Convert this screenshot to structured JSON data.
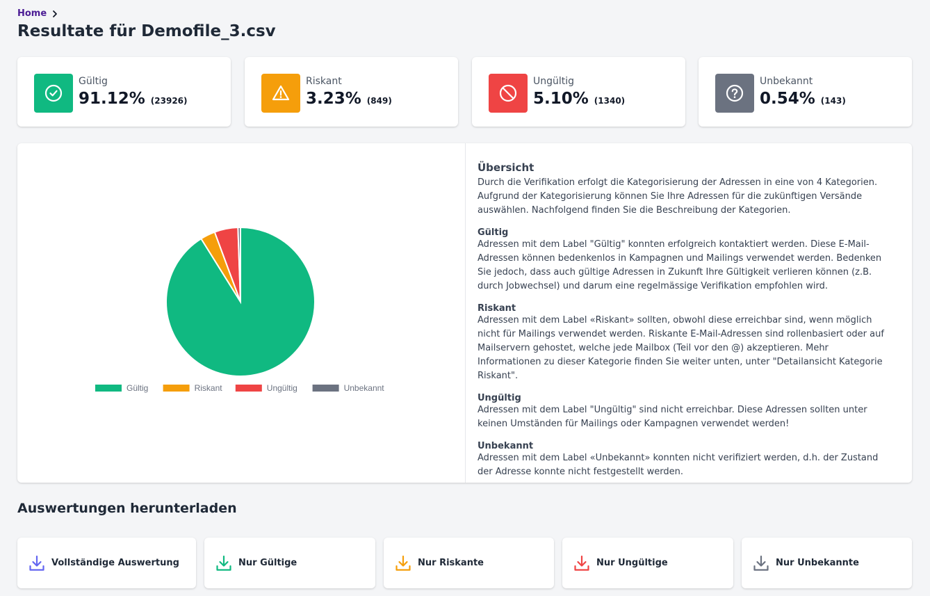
{
  "breadcrumb": {
    "home": "Home"
  },
  "page": {
    "title": "Resultate für Demofile_3.csv"
  },
  "stats": [
    {
      "label": "Gültig",
      "percent": "91.12%",
      "count": "(23926)",
      "color": "#10b981",
      "icon": "check-circle-icon"
    },
    {
      "label": "Riskant",
      "percent": "3.23%",
      "count": "(849)",
      "color": "#f59e0b",
      "icon": "warning-triangle-icon"
    },
    {
      "label": "Ungültig",
      "percent": "5.10%",
      "count": "(1340)",
      "color": "#ef4444",
      "icon": "ban-icon"
    },
    {
      "label": "Unbekannt",
      "percent": "0.54%",
      "count": "(143)",
      "color": "#6b7280",
      "icon": "question-circle-icon"
    }
  ],
  "chart_data": {
    "type": "pie",
    "categories": [
      "Gültig",
      "Riskant",
      "Ungültig",
      "Unbekannt"
    ],
    "values": [
      23926,
      849,
      1340,
      143
    ],
    "colors": [
      "#10b981",
      "#f59e0b",
      "#ef4444",
      "#6b7280"
    ],
    "legend": "bottom"
  },
  "overview": {
    "title": "Übersicht",
    "intro": "Durch die Verifikation erfolgt die Kategorisierung der Adressen in eine von 4 Kategorien. Aufgrund der Kategorisierung können Sie Ihre Adressen für die zukünftigen Versände auswählen. Nachfolgend finden Sie die Beschreibung der Kategorien.",
    "sections": [
      {
        "heading": "Gültig",
        "text": "Adressen mit dem Label \"Gültig\" konnten erfolgreich kontaktiert werden. Diese E-Mail-Adressen können bedenkenlos in Kampagnen und Mailings verwendet werden. Bedenken Sie jedoch, dass auch gültige Adressen in Zukunft Ihre Gültigkeit verlieren können (z.B. durch Jobwechsel) und darum eine regelmässige Verifikation empfohlen wird."
      },
      {
        "heading": "Riskant",
        "text": "Adressen mit dem Label «Riskant» sollten, obwohl diese erreichbar sind, wenn möglich nicht für Mailings verwendet werden. Riskante E-Mail-Adressen sind rollenbasiert oder auf Mailservern gehostet, welche jede Mailbox (Teil vor den @) akzeptieren. Mehr Informationen zu dieser Kategorie finden Sie weiter unten, unter \"Detailansicht Kategorie Riskant\"."
      },
      {
        "heading": "Ungültig",
        "text": "Adressen mit dem Label \"Ungültig\" sind nicht erreichbar. Diese Adressen sollten unter keinen Umständen für Mailings oder Kampagnen verwendet werden!"
      },
      {
        "heading": "Unbekannt",
        "text": "Adressen mit dem Label «Unbekannt» konnten nicht verifiziert werden, d.h. der Zustand der Adresse konnte nicht festgestellt werden."
      }
    ]
  },
  "downloads": {
    "title": "Auswertungen herunterladen",
    "items": [
      {
        "label": "Vollständige Auswertung",
        "color": "#6366f1",
        "icon": "download-icon"
      },
      {
        "label": "Nur Gültige",
        "color": "#10b981",
        "icon": "download-icon"
      },
      {
        "label": "Nur Riskante",
        "color": "#f59e0b",
        "icon": "download-icon"
      },
      {
        "label": "Nur Ungültige",
        "color": "#ef4444",
        "icon": "download-icon"
      },
      {
        "label": "Nur Unbekannte",
        "color": "#6b7280",
        "icon": "download-icon"
      }
    ]
  }
}
